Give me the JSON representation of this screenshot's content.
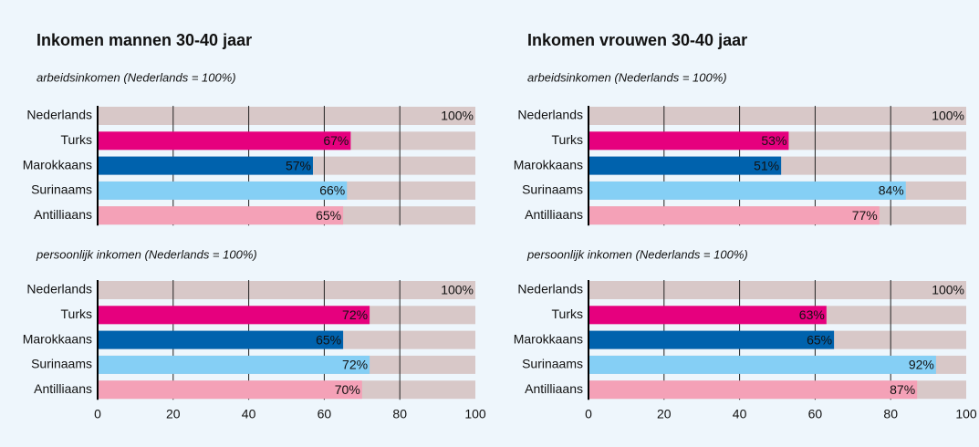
{
  "chart_data": [
    {
      "type": "bar",
      "orientation": "horizontal",
      "title": "Inkomen mannen 30-40 jaar",
      "categories": [
        "Nederlands",
        "Turks",
        "Marokkaans",
        "Surinaams",
        "Antilliaans"
      ],
      "colors": [
        "#d8c8c8",
        "#e6007e",
        "#0062ad",
        "#85cff5",
        "#f4a1b7"
      ],
      "xlim": [
        0,
        100
      ],
      "xticks": [
        0,
        20,
        40,
        60,
        80,
        100
      ],
      "grid": true,
      "subplots": [
        {
          "subtitle": "arbeidsinkomen (Nederlands = 100%)",
          "values": [
            100,
            67,
            57,
            66,
            65
          ],
          "value_labels": [
            "100%",
            "67%",
            "57%",
            "66%",
            "65%"
          ]
        },
        {
          "subtitle": "persoonlijk inkomen (Nederlands = 100%)",
          "values": [
            100,
            72,
            65,
            72,
            70
          ],
          "value_labels": [
            "100%",
            "72%",
            "65%",
            "72%",
            "70%"
          ]
        }
      ]
    },
    {
      "type": "bar",
      "orientation": "horizontal",
      "title": "Inkomen vrouwen 30-40 jaar",
      "categories": [
        "Nederlands",
        "Turks",
        "Marokkaans",
        "Surinaams",
        "Antilliaans"
      ],
      "colors": [
        "#d8c8c8",
        "#e6007e",
        "#0062ad",
        "#85cff5",
        "#f4a1b7"
      ],
      "xlim": [
        0,
        100
      ],
      "xticks": [
        0,
        20,
        40,
        60,
        80,
        100
      ],
      "grid": true,
      "subplots": [
        {
          "subtitle": "arbeidsinkomen (Nederlands = 100%)",
          "values": [
            100,
            53,
            51,
            84,
            77
          ],
          "value_labels": [
            "100%",
            "53%",
            "51%",
            "84%",
            "77%"
          ]
        },
        {
          "subtitle": "persoonlijk inkomen (Nederlands = 100%)",
          "values": [
            100,
            63,
            65,
            92,
            87
          ],
          "value_labels": [
            "100%",
            "63%",
            "65%",
            "92%",
            "87%"
          ]
        }
      ]
    }
  ]
}
